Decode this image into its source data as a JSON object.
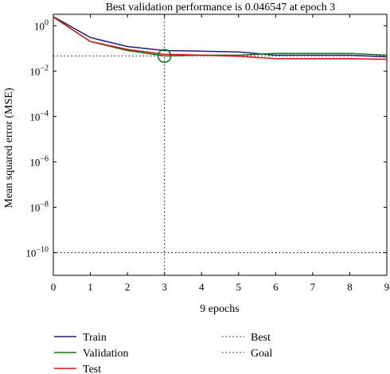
{
  "chart_data": {
    "type": "line",
    "title": "Best validation performance is 0.046547 at epoch 3",
    "xlabel": "9 epochs",
    "ylabel": "Mean squared error (MSE)",
    "y_scale": "log",
    "xlim": [
      0,
      9
    ],
    "ylim_exponent": [
      -11,
      0.5
    ],
    "x_ticks": [
      0,
      1,
      2,
      3,
      4,
      5,
      6,
      7,
      8,
      9
    ],
    "y_ticks": [
      {
        "base": "10",
        "exp": "0",
        "value": 1
      },
      {
        "base": "10",
        "exp": "−2",
        "value": 0.01
      },
      {
        "base": "10",
        "exp": "−4",
        "value": 0.0001
      },
      {
        "base": "10",
        "exp": "−6",
        "value": 1e-06
      },
      {
        "base": "10",
        "exp": "−8",
        "value": 1e-08
      },
      {
        "base": "10",
        "exp": "−10",
        "value": 1e-10
      }
    ],
    "x": [
      0,
      1,
      2,
      3,
      4,
      5,
      6,
      7,
      8,
      9
    ],
    "series": [
      {
        "name": "Train",
        "color": "#1f1f7a",
        "style": "solid",
        "values": [
          2.5,
          0.3,
          0.12,
          0.08,
          0.075,
          0.07,
          0.05,
          0.05,
          0.05,
          0.042
        ]
      },
      {
        "name": "Validation",
        "color": "#117711",
        "style": "solid",
        "values": [
          2.4,
          0.2,
          0.08,
          0.046547,
          0.05,
          0.05,
          0.06,
          0.06,
          0.06,
          0.05
        ]
      },
      {
        "name": "Test",
        "color": "#dd1111",
        "style": "solid",
        "values": [
          2.4,
          0.2,
          0.09,
          0.055,
          0.05,
          0.045,
          0.035,
          0.035,
          0.035,
          0.033
        ]
      }
    ],
    "best": {
      "label": "Best",
      "epoch": 3,
      "value": 0.046547,
      "style": "dotted"
    },
    "goal": {
      "label": "Goal",
      "value": 1e-10,
      "style": "dotted"
    },
    "best_marker_color": "#117711",
    "legend_position": "bottom"
  }
}
